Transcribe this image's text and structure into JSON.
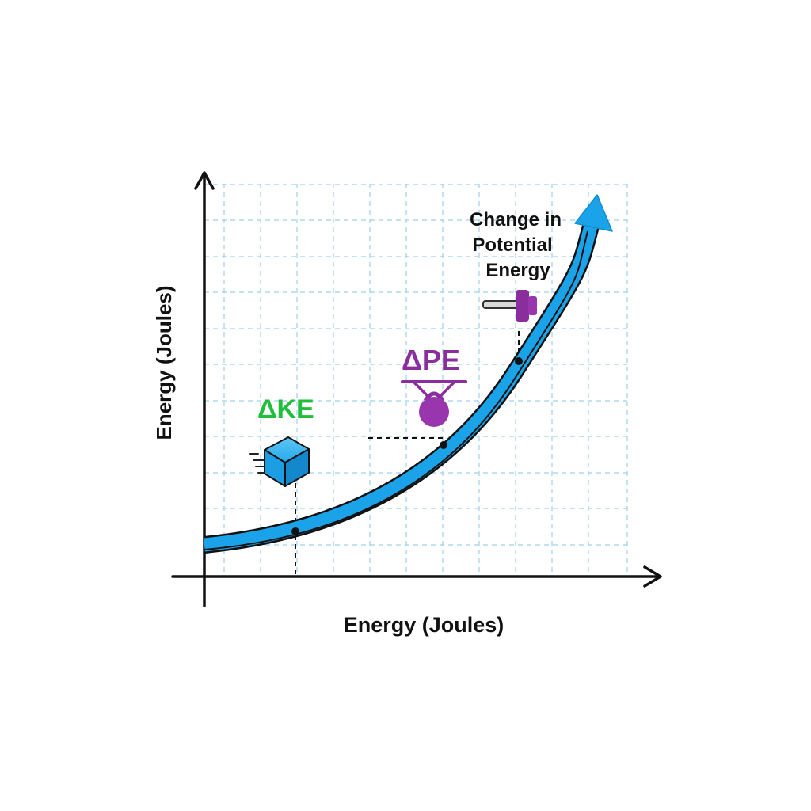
{
  "diagram": {
    "x_axis_label": "Energy (Joules)",
    "y_axis_label": "Energy (Joules)",
    "callout_ke": "ΔKE",
    "callout_pe": "ΔPE",
    "callout_change_pe": [
      "Change in",
      "Potential",
      "Energy"
    ]
  },
  "colors": {
    "curve": "#1aa3e8",
    "ke": "#1fbf3c",
    "pe": "#8a2e9e",
    "grid": "#9fd0ec",
    "axis": "#111111",
    "cube": "#1aa3e8"
  }
}
